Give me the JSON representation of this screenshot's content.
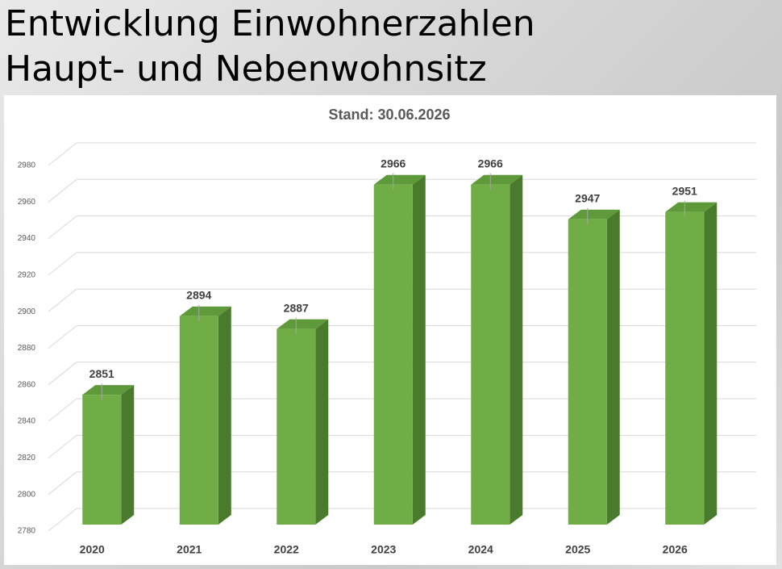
{
  "slide": {
    "title_lines": [
      "Entwicklung Einwohnerzahlen",
      "Haupt- und Nebenwohnsitz"
    ]
  },
  "chart_data": {
    "type": "bar",
    "title": "Stand: 30.06.2026",
    "categories": [
      "2020",
      "2021",
      "2022",
      "2023",
      "2024",
      "2025",
      "2026"
    ],
    "values": [
      2851,
      2894,
      2887,
      2966,
      2966,
      2947,
      2951
    ],
    "color": "#70ad47",
    "ylim": [
      2780,
      2980
    ],
    "yticks": [
      2780,
      2800,
      2820,
      2840,
      2860,
      2880,
      2900,
      2920,
      2940,
      2960,
      2980
    ],
    "grid": true
  }
}
